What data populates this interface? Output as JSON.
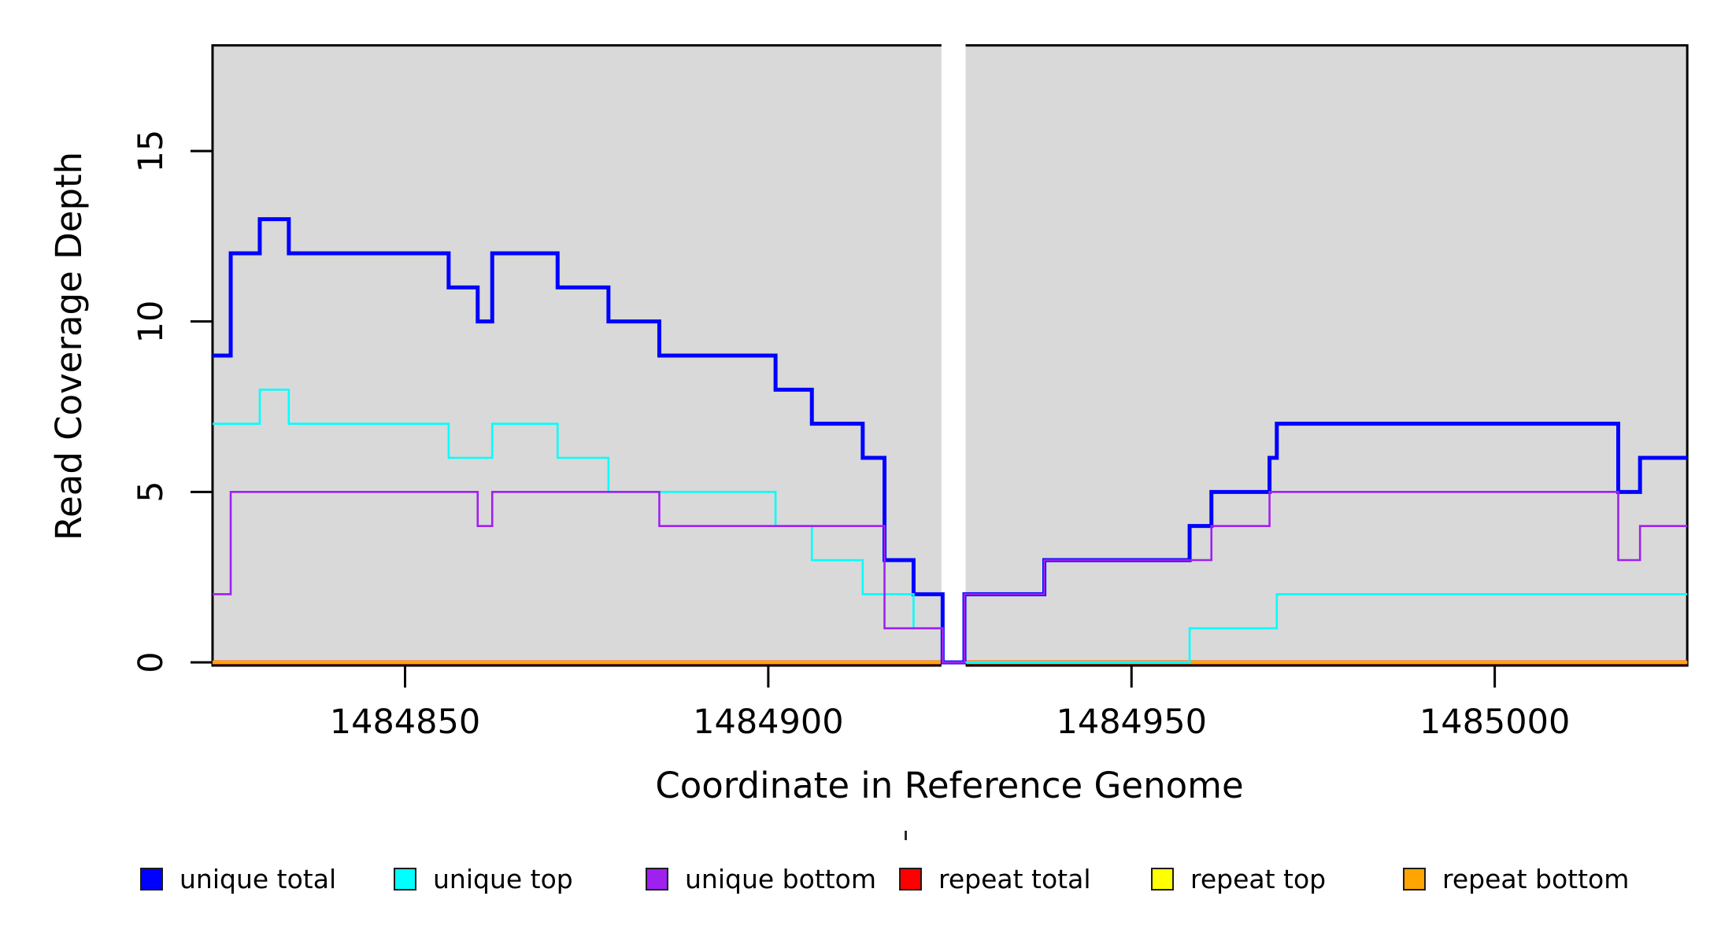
{
  "chart_data": {
    "type": "line",
    "subtype": "step",
    "title": "",
    "xlabel": "Coordinate in Reference Genome",
    "ylabel": "Read Coverage Depth",
    "xlim": [
      1484823.5,
      1485026.5
    ],
    "ylim": [
      0,
      18.1
    ],
    "x_ticks": [
      1484850,
      1484900,
      1484950,
      1485000
    ],
    "y_ticks": [
      0,
      5,
      10,
      15
    ],
    "grid": false,
    "panel_bg": "#D9D9D9",
    "axis_color": "#000000",
    "no_data_region": {
      "from": 1484924,
      "to": 1484927
    },
    "legend_position": "bottom",
    "draw_order": [
      "repeat total",
      "repeat top",
      "repeat bottom",
      "unique total",
      "unique top",
      "unique bottom"
    ],
    "series": [
      {
        "name": "unique total",
        "color": "#0000FF",
        "lwd": 5,
        "steps": [
          [
            1484823.5,
            9
          ],
          [
            1484826,
            12
          ],
          [
            1484830,
            13
          ],
          [
            1484834,
            12
          ],
          [
            1484856,
            11
          ],
          [
            1484860,
            10
          ],
          [
            1484862,
            12
          ],
          [
            1484871,
            11
          ],
          [
            1484878,
            10
          ],
          [
            1484885,
            9
          ],
          [
            1484901,
            8
          ],
          [
            1484906,
            7
          ],
          [
            1484913,
            6
          ],
          [
            1484916,
            3
          ],
          [
            1484920,
            2
          ],
          [
            1484924,
            0
          ],
          [
            1484927,
            2
          ],
          [
            1484938,
            3
          ],
          [
            1484958,
            4
          ],
          [
            1484961,
            5
          ],
          [
            1484969,
            6
          ],
          [
            1484970,
            7
          ],
          [
            1485017,
            5
          ],
          [
            1485020,
            6
          ]
        ]
      },
      {
        "name": "unique top",
        "color": "#00FFFF",
        "lwd": 2.6,
        "steps": [
          [
            1484823.5,
            7
          ],
          [
            1484830,
            8
          ],
          [
            1484834,
            7
          ],
          [
            1484856,
            6
          ],
          [
            1484862,
            7
          ],
          [
            1484871,
            6
          ],
          [
            1484878,
            5
          ],
          [
            1484901,
            4
          ],
          [
            1484906,
            3
          ],
          [
            1484913,
            2
          ],
          [
            1484920,
            1
          ],
          [
            1484924,
            0
          ],
          [
            1484958,
            1
          ],
          [
            1484970,
            2
          ]
        ]
      },
      {
        "name": "unique bottom",
        "color": "#A020F0",
        "lwd": 2.6,
        "steps": [
          [
            1484823.5,
            2
          ],
          [
            1484826,
            5
          ],
          [
            1484860,
            4
          ],
          [
            1484862,
            5
          ],
          [
            1484885,
            4
          ],
          [
            1484916,
            1
          ],
          [
            1484924,
            0
          ],
          [
            1484927,
            2
          ],
          [
            1484938,
            3
          ],
          [
            1484961,
            4
          ],
          [
            1484969,
            5
          ],
          [
            1485017,
            3
          ],
          [
            1485020,
            4
          ]
        ]
      },
      {
        "name": "repeat total",
        "color": "#FF0000",
        "lwd": 5,
        "steps": [
          [
            1484823.5,
            0
          ]
        ]
      },
      {
        "name": "repeat top",
        "color": "#FFFF00",
        "lwd": 2.6,
        "steps": [
          [
            1484823.5,
            0
          ]
        ]
      },
      {
        "name": "repeat bottom",
        "color": "#FFA500",
        "lwd": 4.5,
        "steps": [
          [
            1484823.5,
            0
          ]
        ]
      }
    ]
  },
  "legend": {
    "items": [
      {
        "label": "unique total",
        "color": "#0000FF"
      },
      {
        "label": "unique top",
        "color": "#00FFFF"
      },
      {
        "label": "unique bottom",
        "color": "#A020F0"
      },
      {
        "label": "repeat total",
        "color": "#FF0000"
      },
      {
        "label": "repeat top",
        "color": "#FFFF00"
      },
      {
        "label": "repeat bottom",
        "color": "#FFA500"
      }
    ]
  }
}
